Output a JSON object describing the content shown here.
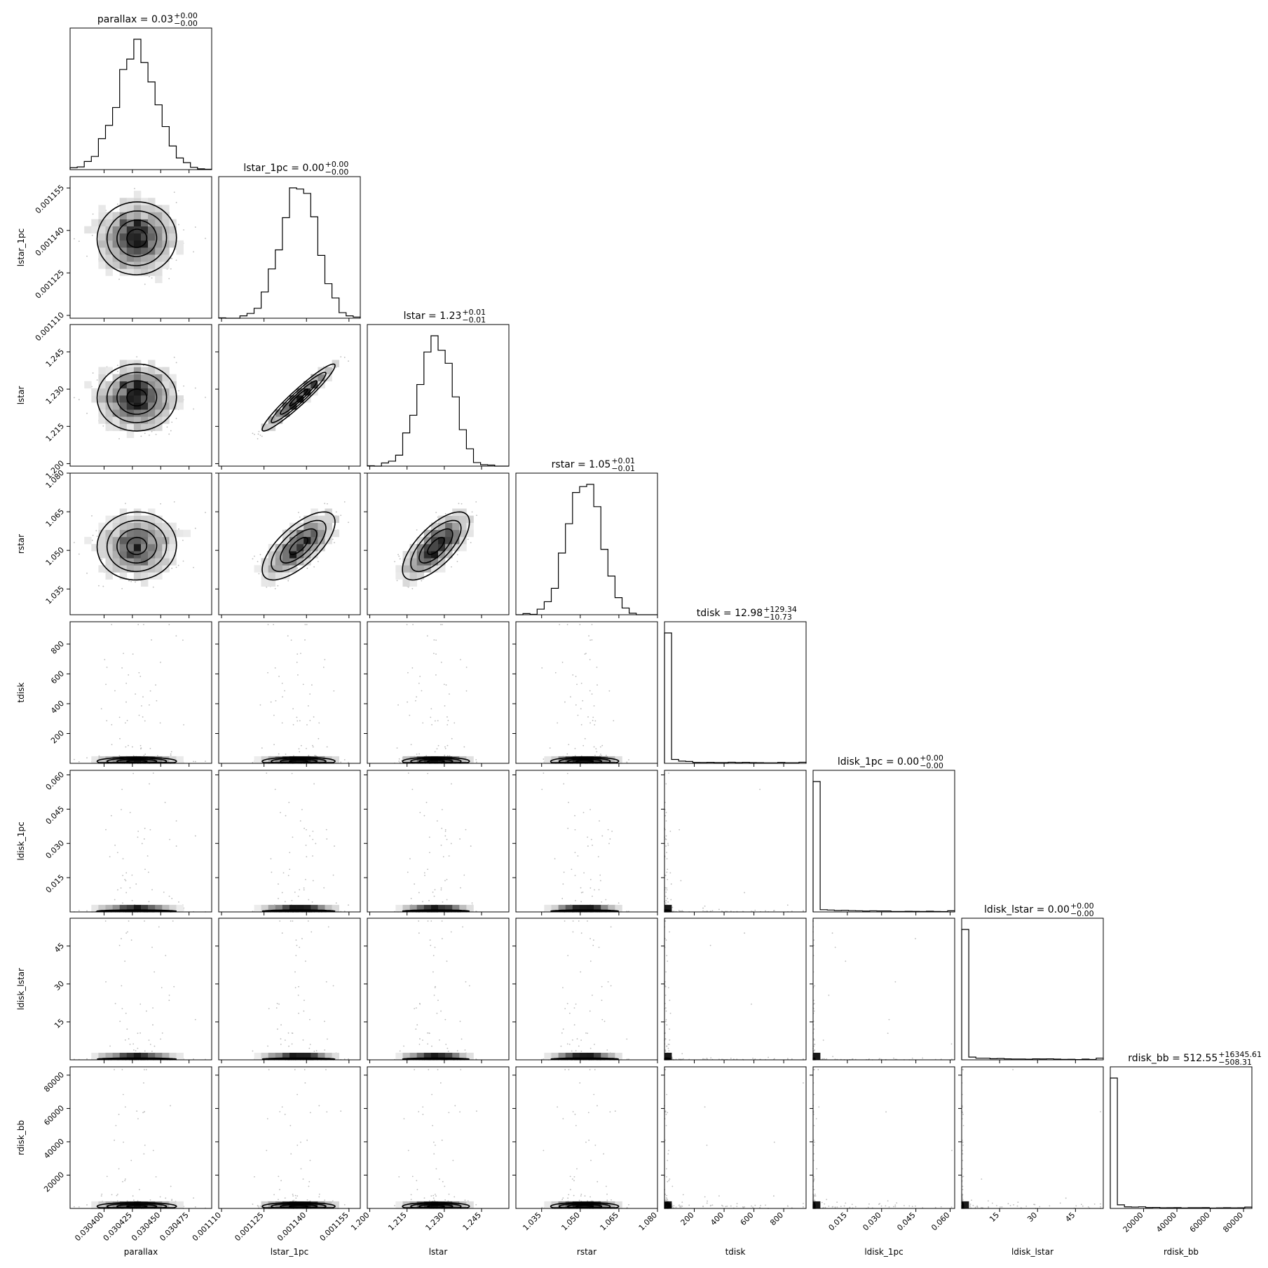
{
  "chart_data": {
    "type": "corner",
    "parameters": [
      {
        "name": "parallax",
        "label": "parallax",
        "median": 0.030429,
        "sigma": 1.8e-05,
        "range": [
          0.03037,
          0.030495
        ],
        "ticks": [
          0.0304,
          0.030425,
          0.03045,
          0.030475
        ],
        "tick_labels": [
          "0.030400",
          "0.030425",
          "0.030450",
          "0.030475"
        ],
        "title": {
          "prefix": "parallax = 0.03",
          "sup": "+0.00",
          "sub": "−0.00"
        },
        "dist": "normal"
      },
      {
        "name": "lstar_1pc",
        "label": "lstar_1pc",
        "median": 0.0011372,
        "sigma": 6.5e-06,
        "range": [
          0.001109,
          0.001159
        ],
        "ticks": [
          0.00111,
          0.001125,
          0.00114,
          0.001155
        ],
        "tick_labels": [
          "0.001110",
          "0.001125",
          "0.001140",
          "0.001155"
        ],
        "title": {
          "prefix": "lstar_1pc = 0.00",
          "sup": "+0.00",
          "sub": "−0.00"
        },
        "dist": "normal"
      },
      {
        "name": "lstar",
        "label": "lstar",
        "median": 1.2265,
        "sigma": 0.0068,
        "range": [
          1.199,
          1.256
        ],
        "ticks": [
          1.2,
          1.215,
          1.23,
          1.245
        ],
        "tick_labels": [
          "1.200",
          "1.215",
          "1.230",
          "1.245"
        ],
        "title": {
          "prefix": "lstar = 1.23",
          "sup": "+0.01",
          "sub": "−0.01"
        },
        "dist": "normal"
      },
      {
        "name": "rstar",
        "label": "rstar",
        "median": 1.0515,
        "sigma": 0.0063,
        "range": [
          1.025,
          1.08
        ],
        "ticks": [
          1.035,
          1.05,
          1.065,
          1.08
        ],
        "tick_labels": [
          "1.035",
          "1.050",
          "1.065",
          "1.080"
        ],
        "title": {
          "prefix": "rstar = 1.05",
          "sup": "+0.01",
          "sub": "−0.01"
        },
        "dist": "normal"
      },
      {
        "name": "tdisk",
        "label": "tdisk",
        "median": 12.98,
        "scale": 30,
        "range": [
          0,
          950
        ],
        "ticks": [
          200,
          400,
          600,
          800
        ],
        "tick_labels": [
          "200",
          "400",
          "600",
          "800"
        ],
        "title": {
          "prefix": "tdisk = 12.98",
          "sup": "+129.34",
          "sub": "−10.73"
        },
        "dist": "heavy"
      },
      {
        "name": "ldisk_1pc",
        "label": "ldisk_1pc",
        "median": 0.0,
        "scale": 0.0006,
        "range": [
          0,
          0.062
        ],
        "ticks": [
          0.015,
          0.03,
          0.045,
          0.06
        ],
        "tick_labels": [
          "0.015",
          "0.030",
          "0.045",
          "0.060"
        ],
        "title": {
          "prefix": "ldisk_1pc = 0.00",
          "sup": "+0.00",
          "sub": "−0.00"
        },
        "dist": "heavy"
      },
      {
        "name": "ldisk_lstar",
        "label": "ldisk_lstar",
        "median": 0.0,
        "scale": 0.5,
        "range": [
          0,
          56
        ],
        "ticks": [
          15,
          30,
          45
        ],
        "tick_labels": [
          "15",
          "30",
          "45"
        ],
        "title": {
          "prefix": "ldisk_lstar = 0.00",
          "sup": "+0.00",
          "sub": "−0.00"
        },
        "dist": "heavy"
      },
      {
        "name": "rdisk_bb",
        "label": "rdisk_bb",
        "median": 512.55,
        "scale": 2500,
        "range": [
          0,
          85000
        ],
        "ticks": [
          20000,
          40000,
          60000,
          80000
        ],
        "tick_labels": [
          "20000",
          "40000",
          "60000",
          "80000"
        ],
        "title": {
          "prefix": "rdisk_bb = 512.55",
          "sup": "+16345.61",
          "sub": "−508.31"
        },
        "dist": "heavy"
      }
    ],
    "correlations": {
      "lstar_1pc|lstar": 0.985,
      "lstar_1pc|rstar": 0.75,
      "lstar|rstar": 0.76
    },
    "contour_levels_sigma": [
      0.5,
      1.0,
      1.5,
      2.0
    ],
    "bins": 20
  }
}
